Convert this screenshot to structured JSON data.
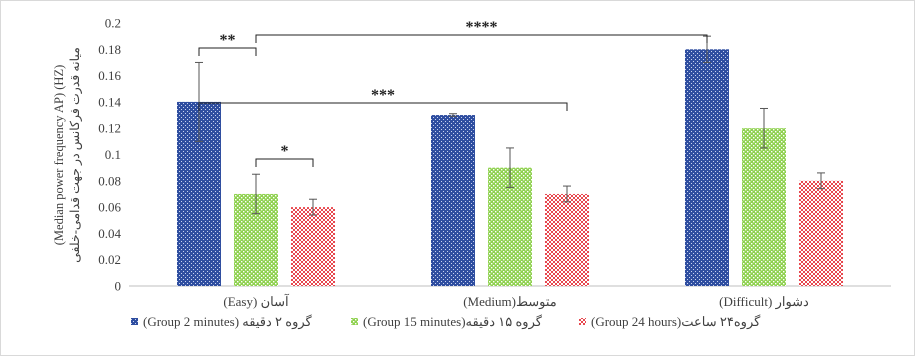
{
  "chart_data": {
    "type": "bar",
    "categories": [
      "(Easy) آسان",
      "(Medium)متوسط",
      "(Difficult) دشوار"
    ],
    "series": [
      {
        "name": "(Group 2 minutes) گروه ۲ دقیقه",
        "values": [
          0.14,
          0.13,
          0.18
        ],
        "errors": [
          0.03,
          0.001,
          0.01
        ],
        "color": "#2f4ea0"
      },
      {
        "name": "(Group 15 minutes)گروه ۱۵ دقیقه",
        "values": [
          0.07,
          0.09,
          0.12
        ],
        "errors": [
          0.015,
          0.015,
          0.015
        ],
        "color": "#8fd14f"
      },
      {
        "name": "(Group 24 hours)گروه۲۴ ساعت",
        "values": [
          0.06,
          0.07,
          0.08
        ],
        "errors": [
          0.006,
          0.006,
          0.006
        ],
        "color": "#e8484f"
      }
    ],
    "ylabel_en": "(Median power frequency AP) (HZ)",
    "ylabel_fa": "میانه قدرت فرکانس در جهت قدامی-خلفی",
    "ylim": [
      0,
      0.2
    ],
    "yticks": [
      "0",
      "0.02",
      "0.04",
      "0.06",
      "0.08",
      "0.1",
      "0.12",
      "0.14",
      "0.16",
      "0.18",
      "0.2"
    ],
    "legend_position": "bottom",
    "gridlines": false,
    "significance": [
      {
        "label": "**",
        "from_category": 0,
        "from_series": 0,
        "to_category": 0,
        "to_series": 1
      },
      {
        "label": "*",
        "from_category": 0,
        "from_series": 1,
        "to_category": 0,
        "to_series": 2
      },
      {
        "label": "****",
        "from_category": 0,
        "from_series": 1,
        "to_category": 2,
        "to_series": 0
      },
      {
        "label": "***",
        "from_category": 0,
        "from_series": 0,
        "to_category": 1,
        "to_series": 2
      }
    ]
  }
}
